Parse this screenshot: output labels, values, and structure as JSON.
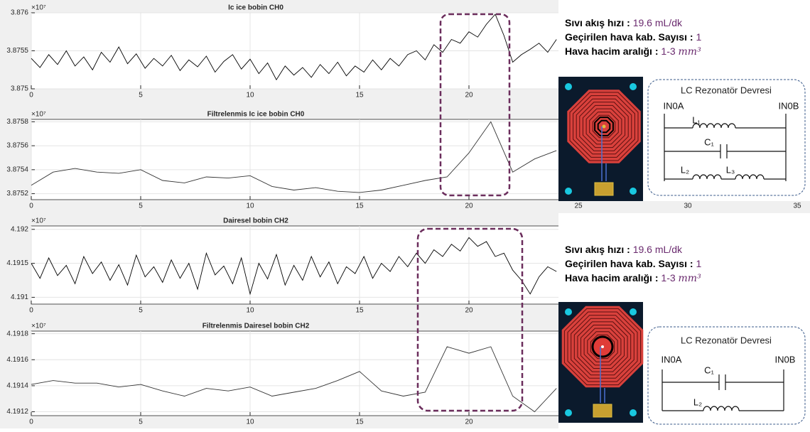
{
  "chart_data": [
    {
      "type": "line",
      "title": "Ic ice bobin CH0",
      "exponent": "×10⁷",
      "color": "#000000",
      "grid": true,
      "xlim": [
        0,
        35
      ],
      "xticks": [
        0,
        5,
        10,
        15,
        20
      ],
      "ylim": [
        3.875,
        3.876
      ],
      "yticks": [
        3.875,
        3.8755,
        3.876
      ],
      "x": [
        0,
        0.4,
        0.8,
        1.2,
        1.6,
        2,
        2.4,
        2.8,
        3.2,
        3.6,
        4,
        4.4,
        4.8,
        5.2,
        5.6,
        6,
        6.4,
        6.8,
        7.2,
        7.6,
        8,
        8.4,
        8.8,
        9.2,
        9.6,
        10,
        10.4,
        10.8,
        11.2,
        11.6,
        12,
        12.4,
        12.8,
        13.2,
        13.6,
        14,
        14.4,
        14.8,
        15.2,
        15.6,
        16,
        16.4,
        16.8,
        17.2,
        17.6,
        18,
        18.4,
        18.8,
        19.2,
        19.6,
        20,
        20.4,
        20.8,
        21.2,
        21.6,
        22,
        22.4,
        22.8,
        23.2,
        23.6,
        24
      ],
      "values": [
        3.8754,
        3.87528,
        3.87545,
        3.87532,
        3.8755,
        3.8753,
        3.87542,
        3.87525,
        3.87548,
        3.87535,
        3.87555,
        3.87533,
        3.87546,
        3.87527,
        3.8754,
        3.8753,
        3.87544,
        3.87524,
        3.87538,
        3.87529,
        3.87543,
        3.87522,
        3.87536,
        3.87545,
        3.87526,
        3.87539,
        3.8752,
        3.87534,
        3.87512,
        3.8753,
        3.87518,
        3.87528,
        3.87515,
        3.87532,
        3.8752,
        3.87535,
        3.87517,
        3.8753,
        3.87522,
        3.87538,
        3.87525,
        3.8754,
        3.8753,
        3.87545,
        3.8755,
        3.87538,
        3.87558,
        3.87548,
        3.87565,
        3.8756,
        3.87575,
        3.87568,
        3.87585,
        3.87598,
        3.8757,
        3.87535,
        3.87545,
        3.87552,
        3.8756,
        3.87548,
        3.87565
      ]
    },
    {
      "type": "line",
      "title": "Filtrelenmis Ic ice bobin CH0",
      "exponent": "×10⁷",
      "color": "#333333",
      "grid": true,
      "xlim": [
        0,
        35
      ],
      "xticks": [
        0,
        5,
        10,
        15,
        20,
        25,
        30,
        35
      ],
      "ylim": [
        3.87515,
        3.87582
      ],
      "yticks": [
        3.8752,
        3.8754,
        3.8756,
        3.8758
      ],
      "x": [
        0,
        1,
        2,
        3,
        4,
        5,
        6,
        7,
        8,
        9,
        10,
        11,
        12,
        13,
        14,
        15,
        16,
        17,
        18,
        19,
        20,
        21,
        22,
        23,
        24
      ],
      "values": [
        3.87527,
        3.87538,
        3.87541,
        3.87538,
        3.87537,
        3.8754,
        3.87531,
        3.87529,
        3.87534,
        3.87533,
        3.87535,
        3.87526,
        3.87523,
        3.87525,
        3.87522,
        3.87521,
        3.87523,
        3.87527,
        3.87531,
        3.87534,
        3.87554,
        3.8758,
        3.87538,
        3.87549,
        3.87556
      ]
    },
    {
      "type": "line",
      "title": "Dairesel bobin CH2",
      "exponent": "×10⁷",
      "color": "#000000",
      "grid": true,
      "xlim": [
        0,
        35
      ],
      "xticks": [
        0,
        5,
        10,
        15,
        20
      ],
      "ylim": [
        4.1909,
        4.19205
      ],
      "yticks": [
        4.191,
        4.1915,
        4.192
      ],
      "x": [
        0,
        0.4,
        0.8,
        1.2,
        1.6,
        2,
        2.4,
        2.8,
        3.2,
        3.6,
        4,
        4.4,
        4.8,
        5.2,
        5.6,
        6,
        6.4,
        6.8,
        7.2,
        7.6,
        8,
        8.4,
        8.8,
        9.2,
        9.6,
        10,
        10.4,
        10.8,
        11.2,
        11.6,
        12,
        12.4,
        12.8,
        13.2,
        13.6,
        14,
        14.4,
        14.8,
        15.2,
        15.6,
        16,
        16.4,
        16.8,
        17.2,
        17.6,
        18,
        18.4,
        18.8,
        19.2,
        19.6,
        20,
        20.4,
        20.8,
        21.2,
        21.6,
        22,
        22.4,
        22.8,
        23.2,
        23.6,
        24
      ],
      "values": [
        4.1915,
        4.19128,
        4.19158,
        4.19132,
        4.19147,
        4.1912,
        4.1916,
        4.19135,
        4.19152,
        4.19125,
        4.19148,
        4.19118,
        4.19162,
        4.1913,
        4.19145,
        4.19122,
        4.19155,
        4.19128,
        4.1915,
        4.19112,
        4.19165,
        4.19133,
        4.19146,
        4.1912,
        4.19158,
        4.19105,
        4.1915,
        4.19127,
        4.19163,
        4.19118,
        4.19147,
        4.19125,
        4.1916,
        4.1913,
        4.19152,
        4.1912,
        4.19145,
        4.19135,
        4.1916,
        4.19128,
        4.1915,
        4.19138,
        4.1916,
        4.19145,
        4.19165,
        4.1915,
        4.1917,
        4.1916,
        4.19178,
        4.19168,
        4.19188,
        4.19175,
        4.19182,
        4.1916,
        4.19165,
        4.1914,
        4.19125,
        4.19105,
        4.1913,
        4.19145,
        4.19138
      ]
    },
    {
      "type": "line",
      "title": "Filtrelenmis Dairesel bobin CH2",
      "exponent": "×10⁷",
      "color": "#333333",
      "grid": true,
      "xlim": [
        0,
        35
      ],
      "xticks": [
        0,
        5,
        10,
        15,
        20
      ],
      "ylim": [
        4.19117,
        4.19182
      ],
      "yticks": [
        4.1912,
        4.1914,
        4.1916,
        4.1918
      ],
      "x": [
        0,
        1,
        2,
        3,
        4,
        5,
        6,
        7,
        8,
        9,
        10,
        11,
        12,
        13,
        14,
        15,
        16,
        17,
        18,
        19,
        20,
        21,
        22,
        23,
        24
      ],
      "values": [
        4.19141,
        4.19144,
        4.19142,
        4.19142,
        4.19139,
        4.19141,
        4.19136,
        4.19132,
        4.19138,
        4.19136,
        4.19139,
        4.19132,
        4.19135,
        4.19138,
        4.19144,
        4.19151,
        4.19136,
        4.19132,
        4.19135,
        4.1917,
        4.19165,
        4.1917,
        4.19132,
        4.1912,
        4.19138
      ]
    }
  ],
  "annotations": [
    {
      "lines": [
        {
          "label": "Sıvı akış hızı :",
          "value": "19.6 mL/dk"
        },
        {
          "label": "Geçirilen hava kab. Sayısı :",
          "value": "1"
        },
        {
          "label": "Hava hacim aralığı :",
          "value": "1-3",
          "unit": "mm³"
        }
      ]
    },
    {
      "lines": [
        {
          "label": "Sıvı akış hızı :",
          "value": "19.6 mL/dk"
        },
        {
          "label": "Geçirilen hava kab. Sayısı :",
          "value": "1"
        },
        {
          "label": "Hava hacim aralığı :",
          "value": "1-3",
          "unit": "mm³"
        }
      ]
    }
  ],
  "circuits": [
    {
      "title": "LC Rezonatör Devresi",
      "in_a": "IN0A",
      "in_b": "IN0B",
      "components": [
        "L₁",
        "C₁",
        "L₂",
        "L₃"
      ]
    },
    {
      "title": "LC Rezonatör Devresi",
      "in_a": "IN0A",
      "in_b": "IN0B",
      "components": [
        "C₁",
        "L₂"
      ]
    }
  ]
}
